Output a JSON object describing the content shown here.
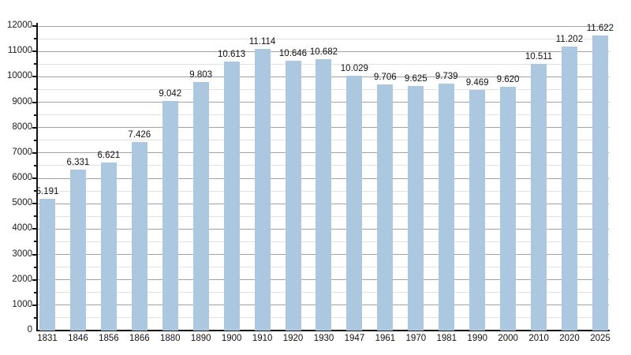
{
  "chart_data": {
    "type": "bar",
    "title": "",
    "xlabel": "",
    "ylabel": "",
    "categories": [
      "1831",
      "1846",
      "1856",
      "1866",
      "1880",
      "1890",
      "1900",
      "1910",
      "1920",
      "1930",
      "1947",
      "1961",
      "1970",
      "1981",
      "1990",
      "2000",
      "2010",
      "2020",
      "2025"
    ],
    "values": [
      5191,
      6331,
      6621,
      7426,
      9042,
      9803,
      10613,
      11114,
      10646,
      10682,
      10029,
      9706,
      9625,
      9739,
      9469,
      9620,
      10511,
      11202,
      11622
    ],
    "value_labels": [
      "5.191",
      "6.331",
      "6.621",
      "7.426",
      "9.042",
      "9.803",
      "10.613",
      "11.114",
      "10.646",
      "10.682",
      "10.029",
      "9.706",
      "9.625",
      "9.739",
      "9.469",
      "9.620",
      "10.511",
      "11.202",
      "11.622"
    ],
    "y_tick_labels": [
      "0",
      "1000",
      "2000",
      "3000",
      "4000",
      "5000",
      "6000",
      "7000",
      "8000",
      "9000",
      "10000",
      "11000",
      "12000"
    ],
    "ylim": [
      0,
      12000
    ],
    "y_major_step": 1000,
    "y_minor_step": 500,
    "grid": true,
    "legend_position": "none",
    "colors": {
      "bar_fill": "#acc8e0",
      "major_grid": "#a3a3a3",
      "minor_grid": "#e2e2e2",
      "axis": "#111111",
      "text": "#111111"
    }
  }
}
